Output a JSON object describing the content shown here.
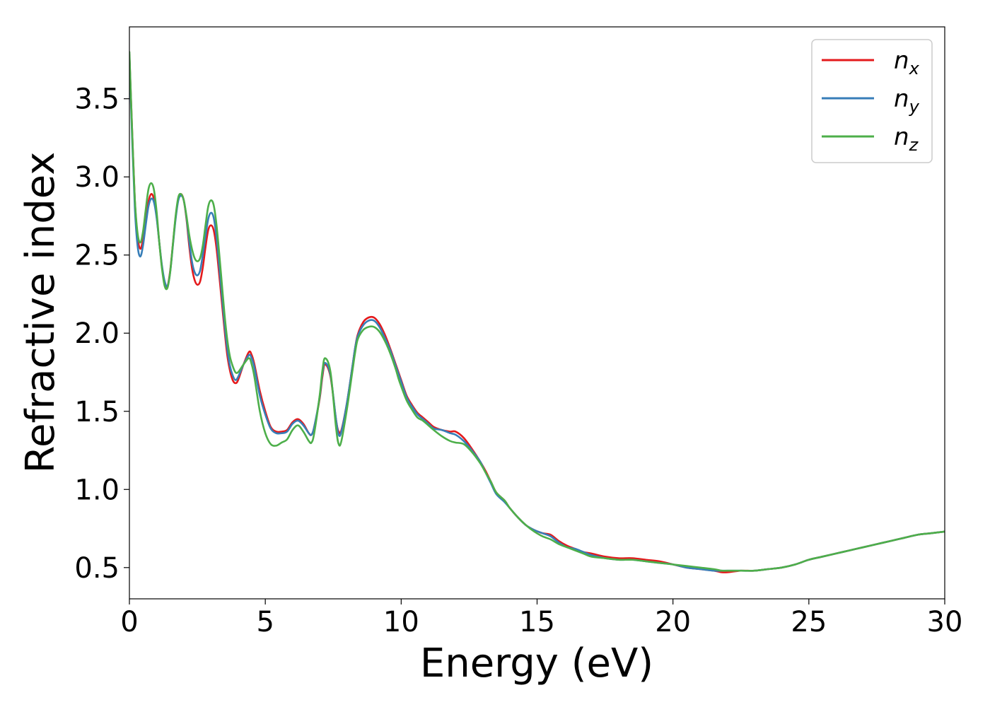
{
  "chart_data": {
    "type": "line",
    "title": "",
    "xlabel": "Energy (eV)",
    "ylabel": "Refractive index",
    "xlim": [
      0,
      30
    ],
    "ylim": [
      0.3,
      3.96
    ],
    "xticks": [
      0,
      5,
      10,
      15,
      20,
      25,
      30
    ],
    "yticks": [
      0.5,
      1.0,
      1.5,
      2.0,
      2.5,
      3.0,
      3.5
    ],
    "xtick_labels": [
      "0",
      "5",
      "10",
      "15",
      "20",
      "25",
      "30"
    ],
    "ytick_labels": [
      "0.5",
      "1.0",
      "1.5",
      "2.0",
      "2.5",
      "3.0",
      "3.5"
    ],
    "grid": false,
    "legend_position": "top-right",
    "series": [
      {
        "base": "n",
        "sub": "x",
        "color": "#e41a1c",
        "x": [
          0,
          0.1,
          0.2,
          0.3,
          0.4,
          0.5,
          0.6,
          0.7,
          0.8,
          0.9,
          1.0,
          1.1,
          1.2,
          1.3,
          1.4,
          1.5,
          1.6,
          1.7,
          1.8,
          1.9,
          2.0,
          2.1,
          2.2,
          2.3,
          2.4,
          2.5,
          2.6,
          2.7,
          2.8,
          2.9,
          3.0,
          3.1,
          3.2,
          3.3,
          3.4,
          3.5,
          3.6,
          3.7,
          3.8,
          3.9,
          4.0,
          4.2,
          4.4,
          4.5,
          4.6,
          4.8,
          5.0,
          5.2,
          5.4,
          5.6,
          5.8,
          6.0,
          6.2,
          6.4,
          6.6,
          6.7,
          6.8,
          7.0,
          7.1,
          7.2,
          7.4,
          7.6,
          7.7,
          7.8,
          8.0,
          8.2,
          8.3,
          8.4,
          8.6,
          8.8,
          9.0,
          9.2,
          9.4,
          9.6,
          9.8,
          9.9,
          10.0,
          10.2,
          10.4,
          10.6,
          10.8,
          11.0,
          11.2,
          11.5,
          11.8,
          12.0,
          12.3,
          12.6,
          12.9,
          13.1,
          13.3,
          13.5,
          13.8,
          14.0,
          14.3,
          14.6,
          14.9,
          15.2,
          15.5,
          15.8,
          16.1,
          16.4,
          16.7,
          17.0,
          17.5,
          18.0,
          18.5,
          19.0,
          19.5,
          20.0,
          20.5,
          21.0,
          21.5,
          21.8,
          22.0,
          22.5,
          23.0,
          23.5,
          24.0,
          24.5,
          25.0,
          25.5,
          26.0,
          26.5,
          27.0,
          27.5,
          28.0,
          28.5,
          29.0,
          29.5,
          30.0
        ],
        "y": [
          3.78,
          3.3,
          2.85,
          2.62,
          2.54,
          2.6,
          2.72,
          2.84,
          2.89,
          2.86,
          2.75,
          2.58,
          2.42,
          2.32,
          2.3,
          2.4,
          2.57,
          2.74,
          2.86,
          2.89,
          2.85,
          2.73,
          2.56,
          2.42,
          2.34,
          2.31,
          2.33,
          2.42,
          2.55,
          2.66,
          2.69,
          2.66,
          2.55,
          2.38,
          2.2,
          2.02,
          1.86,
          1.76,
          1.7,
          1.68,
          1.7,
          1.8,
          1.88,
          1.86,
          1.8,
          1.63,
          1.5,
          1.4,
          1.37,
          1.37,
          1.38,
          1.43,
          1.45,
          1.42,
          1.36,
          1.35,
          1.4,
          1.58,
          1.72,
          1.8,
          1.72,
          1.45,
          1.37,
          1.38,
          1.55,
          1.78,
          1.9,
          1.99,
          2.07,
          2.1,
          2.1,
          2.06,
          1.99,
          1.9,
          1.8,
          1.75,
          1.7,
          1.6,
          1.54,
          1.49,
          1.46,
          1.43,
          1.4,
          1.38,
          1.37,
          1.37,
          1.33,
          1.26,
          1.18,
          1.12,
          1.05,
          0.98,
          0.93,
          0.88,
          0.82,
          0.77,
          0.74,
          0.72,
          0.71,
          0.67,
          0.64,
          0.62,
          0.6,
          0.59,
          0.57,
          0.56,
          0.56,
          0.55,
          0.54,
          0.52,
          0.5,
          0.49,
          0.48,
          0.47,
          0.47,
          0.48,
          0.48,
          0.49,
          0.5,
          0.52,
          0.55,
          0.57,
          0.59,
          0.61,
          0.63,
          0.65,
          0.67,
          0.69,
          0.71,
          0.72,
          0.73
        ]
      },
      {
        "base": "n",
        "sub": "y",
        "color": "#377eb8",
        "x": [
          0,
          0.1,
          0.2,
          0.3,
          0.4,
          0.5,
          0.6,
          0.7,
          0.8,
          0.9,
          1.0,
          1.1,
          1.2,
          1.3,
          1.4,
          1.5,
          1.6,
          1.7,
          1.8,
          1.9,
          2.0,
          2.1,
          2.2,
          2.3,
          2.4,
          2.5,
          2.6,
          2.7,
          2.8,
          2.9,
          3.0,
          3.1,
          3.2,
          3.3,
          3.4,
          3.5,
          3.6,
          3.7,
          3.8,
          3.9,
          4.0,
          4.2,
          4.4,
          4.5,
          4.6,
          4.8,
          5.0,
          5.2,
          5.4,
          5.6,
          5.8,
          6.0,
          6.2,
          6.4,
          6.6,
          6.7,
          6.8,
          7.0,
          7.1,
          7.2,
          7.4,
          7.6,
          7.7,
          7.8,
          8.0,
          8.2,
          8.3,
          8.4,
          8.6,
          8.8,
          9.0,
          9.2,
          9.4,
          9.6,
          9.8,
          9.9,
          10.0,
          10.2,
          10.4,
          10.6,
          10.8,
          11.0,
          11.2,
          11.5,
          11.8,
          12.0,
          12.3,
          12.6,
          12.9,
          13.1,
          13.3,
          13.5,
          13.8,
          14.0,
          14.3,
          14.6,
          14.9,
          15.2,
          15.5,
          15.8,
          16.1,
          16.4,
          16.7,
          17.0,
          17.5,
          18.0,
          18.5,
          19.0,
          19.5,
          20.0,
          20.5,
          21.0,
          21.5,
          21.8,
          22.0,
          22.5,
          23.0,
          23.5,
          24.0,
          24.5,
          25.0,
          25.5,
          26.0,
          26.5,
          27.0,
          27.5,
          28.0,
          28.5,
          29.0,
          29.5,
          30.0
        ],
        "y": [
          3.78,
          3.25,
          2.8,
          2.56,
          2.49,
          2.56,
          2.69,
          2.81,
          2.86,
          2.84,
          2.74,
          2.58,
          2.43,
          2.33,
          2.3,
          2.39,
          2.56,
          2.73,
          2.85,
          2.88,
          2.85,
          2.74,
          2.59,
          2.46,
          2.39,
          2.37,
          2.4,
          2.5,
          2.62,
          2.73,
          2.77,
          2.74,
          2.62,
          2.44,
          2.25,
          2.06,
          1.9,
          1.79,
          1.73,
          1.7,
          1.72,
          1.8,
          1.86,
          1.84,
          1.78,
          1.6,
          1.48,
          1.39,
          1.36,
          1.36,
          1.37,
          1.42,
          1.44,
          1.41,
          1.36,
          1.35,
          1.4,
          1.59,
          1.74,
          1.81,
          1.73,
          1.45,
          1.35,
          1.37,
          1.55,
          1.78,
          1.9,
          1.98,
          2.05,
          2.08,
          2.08,
          2.04,
          1.97,
          1.89,
          1.79,
          1.74,
          1.69,
          1.59,
          1.53,
          1.48,
          1.45,
          1.42,
          1.39,
          1.38,
          1.36,
          1.35,
          1.31,
          1.25,
          1.18,
          1.11,
          1.04,
          0.97,
          0.92,
          0.88,
          0.82,
          0.77,
          0.74,
          0.72,
          0.7,
          0.66,
          0.63,
          0.62,
          0.6,
          0.58,
          0.56,
          0.55,
          0.55,
          0.54,
          0.53,
          0.52,
          0.5,
          0.49,
          0.48,
          0.48,
          0.48,
          0.48,
          0.48,
          0.49,
          0.5,
          0.52,
          0.55,
          0.57,
          0.59,
          0.61,
          0.63,
          0.65,
          0.67,
          0.69,
          0.71,
          0.72,
          0.73
        ]
      },
      {
        "base": "n",
        "sub": "z",
        "color": "#4daf4a",
        "x": [
          0,
          0.1,
          0.2,
          0.3,
          0.4,
          0.5,
          0.6,
          0.7,
          0.8,
          0.9,
          1.0,
          1.1,
          1.2,
          1.3,
          1.4,
          1.5,
          1.6,
          1.7,
          1.8,
          1.9,
          2.0,
          2.1,
          2.2,
          2.3,
          2.4,
          2.5,
          2.6,
          2.7,
          2.8,
          2.9,
          3.0,
          3.1,
          3.2,
          3.3,
          3.4,
          3.5,
          3.6,
          3.7,
          3.8,
          3.9,
          4.0,
          4.2,
          4.4,
          4.5,
          4.6,
          4.8,
          5.0,
          5.2,
          5.4,
          5.6,
          5.8,
          6.0,
          6.2,
          6.4,
          6.6,
          6.7,
          6.8,
          7.0,
          7.1,
          7.2,
          7.4,
          7.6,
          7.7,
          7.8,
          8.0,
          8.2,
          8.3,
          8.4,
          8.6,
          8.8,
          9.0,
          9.2,
          9.4,
          9.6,
          9.8,
          9.9,
          10.0,
          10.2,
          10.4,
          10.6,
          10.8,
          11.0,
          11.2,
          11.5,
          11.8,
          12.0,
          12.3,
          12.6,
          12.9,
          13.1,
          13.3,
          13.5,
          13.8,
          14.0,
          14.3,
          14.6,
          14.9,
          15.2,
          15.5,
          15.8,
          16.1,
          16.4,
          16.7,
          17.0,
          17.5,
          18.0,
          18.5,
          19.0,
          19.5,
          20.0,
          20.5,
          21.0,
          21.5,
          21.8,
          22.0,
          22.5,
          23.0,
          23.5,
          24.0,
          24.5,
          25.0,
          25.5,
          26.0,
          26.5,
          27.0,
          27.5,
          28.0,
          28.5,
          29.0,
          29.5,
          30.0
        ],
        "y": [
          3.8,
          3.3,
          2.86,
          2.64,
          2.58,
          2.65,
          2.79,
          2.92,
          2.96,
          2.92,
          2.78,
          2.58,
          2.41,
          2.3,
          2.29,
          2.39,
          2.57,
          2.75,
          2.87,
          2.89,
          2.85,
          2.75,
          2.63,
          2.54,
          2.48,
          2.46,
          2.48,
          2.56,
          2.69,
          2.81,
          2.85,
          2.82,
          2.7,
          2.52,
          2.32,
          2.12,
          1.96,
          1.85,
          1.79,
          1.75,
          1.75,
          1.8,
          1.84,
          1.8,
          1.72,
          1.5,
          1.36,
          1.29,
          1.28,
          1.3,
          1.32,
          1.38,
          1.41,
          1.37,
          1.31,
          1.3,
          1.36,
          1.6,
          1.76,
          1.84,
          1.75,
          1.4,
          1.29,
          1.31,
          1.51,
          1.75,
          1.87,
          1.96,
          2.02,
          2.04,
          2.04,
          2.01,
          1.95,
          1.87,
          1.77,
          1.71,
          1.66,
          1.57,
          1.51,
          1.46,
          1.44,
          1.41,
          1.38,
          1.34,
          1.31,
          1.3,
          1.29,
          1.24,
          1.17,
          1.11,
          1.05,
          0.98,
          0.93,
          0.88,
          0.82,
          0.77,
          0.73,
          0.7,
          0.68,
          0.65,
          0.63,
          0.61,
          0.59,
          0.57,
          0.56,
          0.55,
          0.55,
          0.54,
          0.53,
          0.52,
          0.51,
          0.5,
          0.49,
          0.48,
          0.48,
          0.48,
          0.48,
          0.49,
          0.5,
          0.52,
          0.55,
          0.57,
          0.59,
          0.61,
          0.63,
          0.65,
          0.67,
          0.69,
          0.71,
          0.72,
          0.73
        ]
      }
    ]
  }
}
